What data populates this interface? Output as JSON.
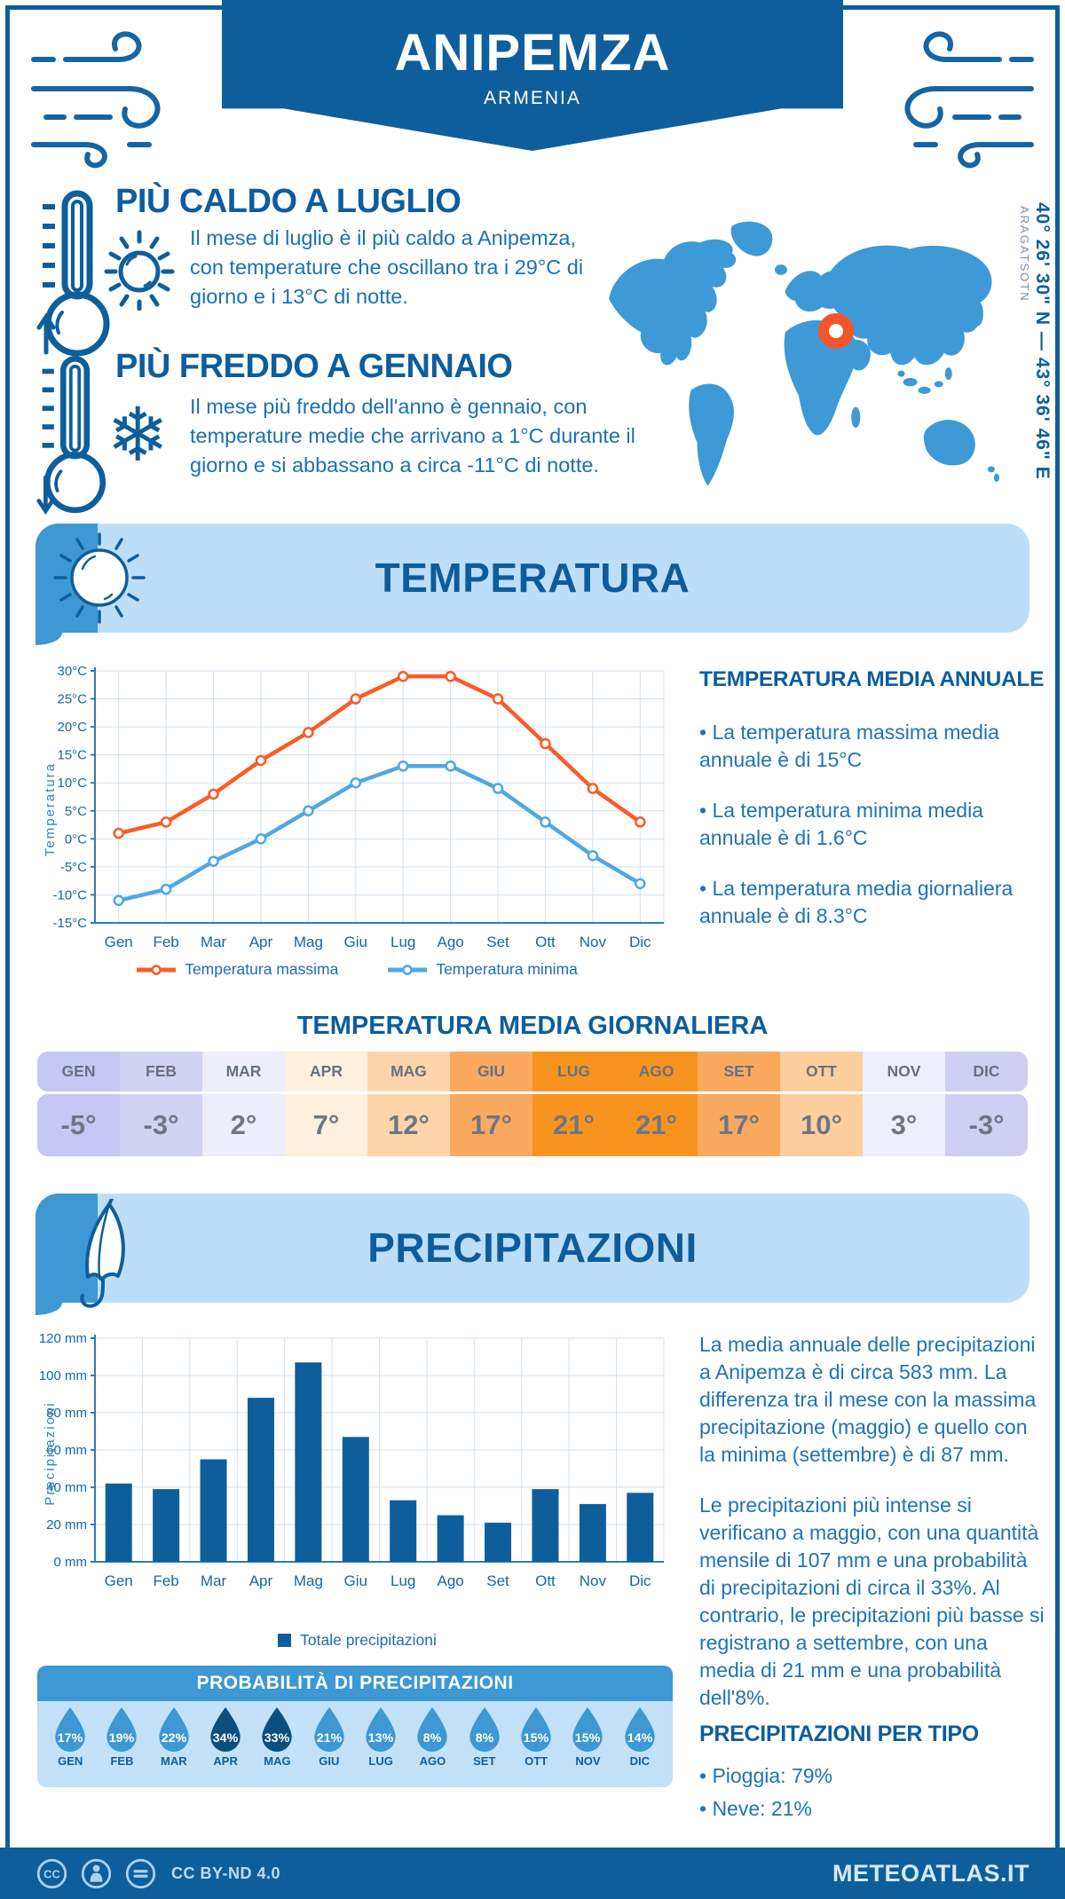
{
  "header": {
    "title": "ANIPEMZA",
    "subtitle": "ARMENIA"
  },
  "highlights": {
    "hot": {
      "title": "PIÙ CALDO A LUGLIO",
      "text": "Il mese di luglio è il più caldo a Anipemza, con temperature che oscillano tra i 29°C di giorno e i 13°C di notte."
    },
    "cold": {
      "title": "PIÙ FREDDO A GENNAIO",
      "text": "Il mese più freddo dell'anno è gennaio, con temperature medie che arrivano a 1°C durante il giorno e si abbassano a circa -11°C di notte."
    }
  },
  "map": {
    "coordinates": "40° 26' 30\" N — 43° 36' 46\" E",
    "region": "ARAGATSOTN"
  },
  "temperature": {
    "banner_title": "TEMPERATURA",
    "annual": {
      "title": "TEMPERATURA MEDIA ANNUALE",
      "bullets": [
        "• La temperatura massima media annuale è di 15°C",
        "• La temperatura minima media annuale è di 1.6°C",
        "• La temperatura media giornaliera annuale è di 8.3°C"
      ]
    },
    "daily": {
      "title": "TEMPERATURA MEDIA GIORNALIERA",
      "months": [
        "GEN",
        "FEB",
        "MAR",
        "APR",
        "MAG",
        "GIU",
        "LUG",
        "AGO",
        "SET",
        "OTT",
        "NOV",
        "DIC"
      ],
      "values": [
        "-5°",
        "-3°",
        "2°",
        "7°",
        "12°",
        "17°",
        "21°",
        "21°",
        "17°",
        "10°",
        "3°",
        "-3°"
      ],
      "cell_colors": [
        "#C6C7F2",
        "#D2D2F5",
        "#EDEDFB",
        "#FDF0DF",
        "#FCD6AA",
        "#FAA95E",
        "#F7941F",
        "#F7941F",
        "#FAA95E",
        "#FCCF9D",
        "#EFEFFC",
        "#CFCFF3"
      ]
    }
  },
  "precipitation": {
    "banner_title": "PRECIPITAZIONI",
    "paragraphs": [
      "La media annuale delle precipitazioni a Anipemza è di circa 583 mm. La differenza tra il mese con la massima precipitazione (maggio) e quello con la minima (settembre) è di 87 mm.",
      "Le precipitazioni più intense si verificano a maggio, con una quantità mensile di 107 mm e una probabilità di precipitazioni di circa il 33%. Al contrario, le precipitazioni più basse si registrano a settembre, con una media di 21 mm e una probabilità dell'8%."
    ],
    "probability": {
      "title": "PROBABILITÀ DI PRECIPITAZIONI",
      "months": [
        "GEN",
        "FEB",
        "MAR",
        "APR",
        "MAG",
        "GIU",
        "LUG",
        "AGO",
        "SET",
        "OTT",
        "NOV",
        "DIC"
      ],
      "values": [
        "17%",
        "19%",
        "22%",
        "34%",
        "33%",
        "21%",
        "13%",
        "8%",
        "8%",
        "15%",
        "15%",
        "14%"
      ],
      "drop_color": "#3D98D3",
      "drop_color_dark": "#0A4F80",
      "dark_indices": [
        3,
        4
      ]
    },
    "types": {
      "title": "PRECIPITAZIONI PER TIPO",
      "bullets": [
        "• Pioggia: 79%",
        "• Neve: 21%"
      ]
    }
  },
  "chart_data": [
    {
      "type": "line",
      "x": [
        "Gen",
        "Feb",
        "Mar",
        "Apr",
        "Mag",
        "Giu",
        "Lug",
        "Ago",
        "Set",
        "Ott",
        "Nov",
        "Dic"
      ],
      "series": [
        {
          "name": "Temperatura massima",
          "color": "#FB5B27",
          "values": [
            1,
            3,
            8,
            14,
            19,
            25,
            29,
            29,
            25,
            17,
            9,
            3
          ]
        },
        {
          "name": "Temperatura minima",
          "color": "#4FA8E3",
          "values": [
            -11,
            -9,
            -4,
            0,
            5,
            10,
            13,
            13,
            9,
            3,
            -3,
            -8
          ]
        }
      ],
      "ylabel": "Temperatura",
      "ylim": [
        -15,
        30
      ],
      "ytick_step": 5,
      "ytick_suffix": "°C",
      "grid": true,
      "legend_position": "bottom"
    },
    {
      "type": "bar",
      "categories": [
        "Gen",
        "Feb",
        "Mar",
        "Apr",
        "Mag",
        "Giu",
        "Lug",
        "Ago",
        "Set",
        "Ott",
        "Nov",
        "Dic"
      ],
      "series": [
        {
          "name": "Totale precipitazioni",
          "color": "#0F5E9C",
          "values": [
            42,
            39,
            55,
            88,
            107,
            67,
            33,
            25,
            21,
            39,
            31,
            37
          ]
        }
      ],
      "ylabel": "Precipitazioni",
      "ylim": [
        0,
        120
      ],
      "ytick_step": 20,
      "ytick_suffix": " mm",
      "grid": true,
      "legend_position": "bottom"
    }
  ],
  "footer": {
    "license": "CC BY-ND 4.0",
    "site": "METEOATLAS.IT"
  },
  "colors": {
    "primary": "#0F5E9C",
    "medium_blue": "#3D98D3",
    "banner_light": "#BDDEF9",
    "panel_light": "#C3E1F8",
    "heading": "#0D5D9E",
    "body_text": "#1C70B3",
    "axis_label": "#1467A8",
    "grid": "#D3E2F0",
    "axis": "#2F7CB6",
    "max_line": "#FB5B27",
    "min_line": "#4FA8E3",
    "marker_orange": "#F2552B",
    "map_blue": "#3D9AD6"
  }
}
